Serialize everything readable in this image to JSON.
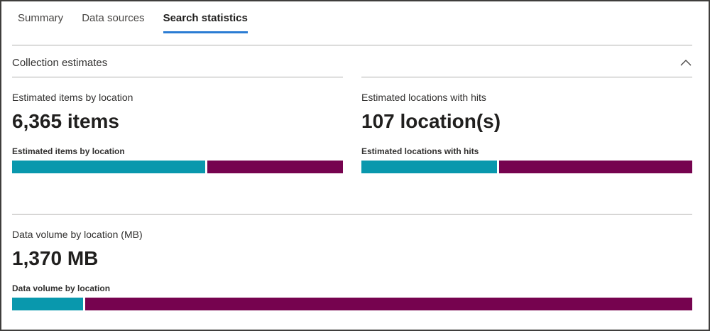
{
  "tabs": [
    {
      "label": "Summary",
      "active": false
    },
    {
      "label": "Data sources",
      "active": false
    },
    {
      "label": "Search statistics",
      "active": true
    }
  ],
  "section": {
    "title": "Collection estimates",
    "collapse_icon": "chevron-up-icon",
    "state": "expanded"
  },
  "colors": {
    "tab_active_underline": "#2b7cd3",
    "bar_teal": "#0998ad",
    "bar_magenta": "#76034f",
    "divider_gray": "#b1afad",
    "text_dark": "#201f1e",
    "text_gray": "#323130"
  },
  "cards": [
    {
      "label": "Estimated items by location",
      "value": "6,365 items",
      "chart_title": "Estimated items by location"
    },
    {
      "label": "Estimated locations with hits",
      "value": "107 location(s)",
      "chart_title": "Estimated locations with hits"
    },
    {
      "label": "Data volume by location (MB)",
      "value": "1,370 MB",
      "chart_title": "Data volume by location"
    }
  ],
  "chart_data": [
    {
      "type": "bar",
      "subtype": "stacked-horizontal-single-row",
      "title": "Estimated items by location",
      "total": "6,365 items",
      "axes": false,
      "legend": false,
      "segments": [
        {
          "color": "teal",
          "pct": 58.4
        },
        {
          "color": "magenta",
          "pct": 41.6
        }
      ]
    },
    {
      "type": "bar",
      "subtype": "stacked-horizontal-single-row",
      "title": "Estimated locations with hits",
      "total": "107 location(s)",
      "axes": false,
      "legend": false,
      "segments": [
        {
          "color": "teal",
          "pct": 41.0
        },
        {
          "color": "magenta",
          "pct": 59.0
        }
      ]
    },
    {
      "type": "bar",
      "subtype": "stacked-horizontal-single-row",
      "title": "Data volume by location",
      "total": "1,370 MB",
      "axes": false,
      "legend": false,
      "segments": [
        {
          "color": "teal",
          "pct": 10.4
        },
        {
          "color": "magenta",
          "pct": 89.6
        }
      ]
    }
  ]
}
